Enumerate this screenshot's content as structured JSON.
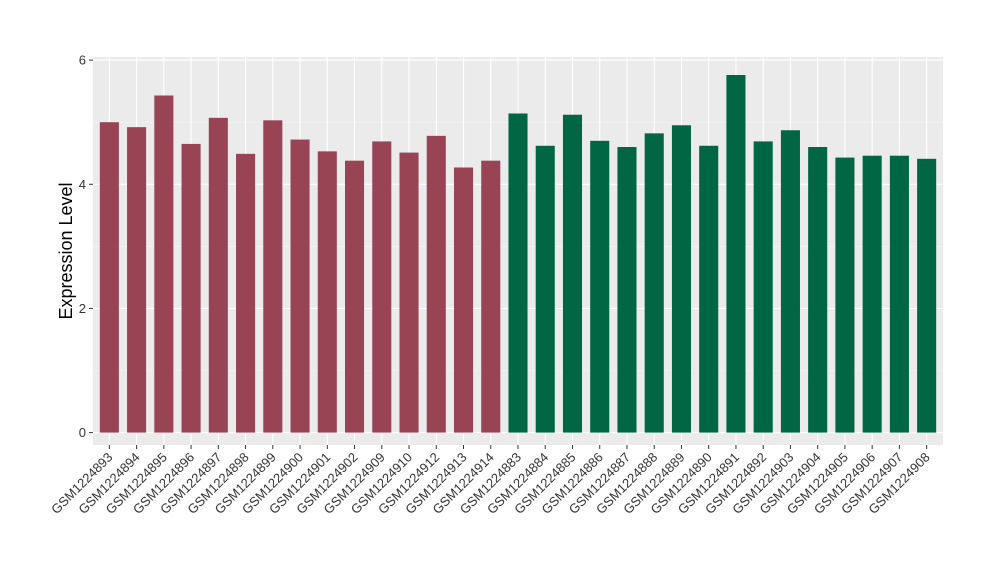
{
  "chart_data": {
    "type": "bar",
    "ylabel": "Expression Level",
    "xlabel": "",
    "ylim": [
      -0.2,
      6.05
    ],
    "yticks": [
      0,
      2,
      4,
      6
    ],
    "grid": true,
    "panel_background": "#EBEBEB",
    "categories": [
      "GSM1224893",
      "GSM1224894",
      "GSM1224895",
      "GSM1224896",
      "GSM1224897",
      "GSM1224898",
      "GSM1224899",
      "GSM1224900",
      "GSM1224901",
      "GSM1224902",
      "GSM1224909",
      "GSM1224910",
      "GSM1224912",
      "GSM1224913",
      "GSM1224914",
      "GSM1224883",
      "GSM1224884",
      "GSM1224885",
      "GSM1224886",
      "GSM1224887",
      "GSM1224888",
      "GSM1224889",
      "GSM1224890",
      "GSM1224891",
      "GSM1224892",
      "GSM1224903",
      "GSM1224904",
      "GSM1224905",
      "GSM1224906",
      "GSM1224907",
      "GSM1224908"
    ],
    "values": [
      5.0,
      4.92,
      5.43,
      4.65,
      5.07,
      4.49,
      5.03,
      4.72,
      4.53,
      4.38,
      4.69,
      4.51,
      4.78,
      4.27,
      4.38,
      5.14,
      4.62,
      5.12,
      4.7,
      4.6,
      4.82,
      4.95,
      4.62,
      5.76,
      4.69,
      4.87,
      4.6,
      4.43,
      4.46,
      4.46,
      4.41
    ],
    "groups": [
      {
        "count": 15,
        "color": "#994455"
      },
      {
        "count": 16,
        "color": "#006644"
      }
    ]
  }
}
